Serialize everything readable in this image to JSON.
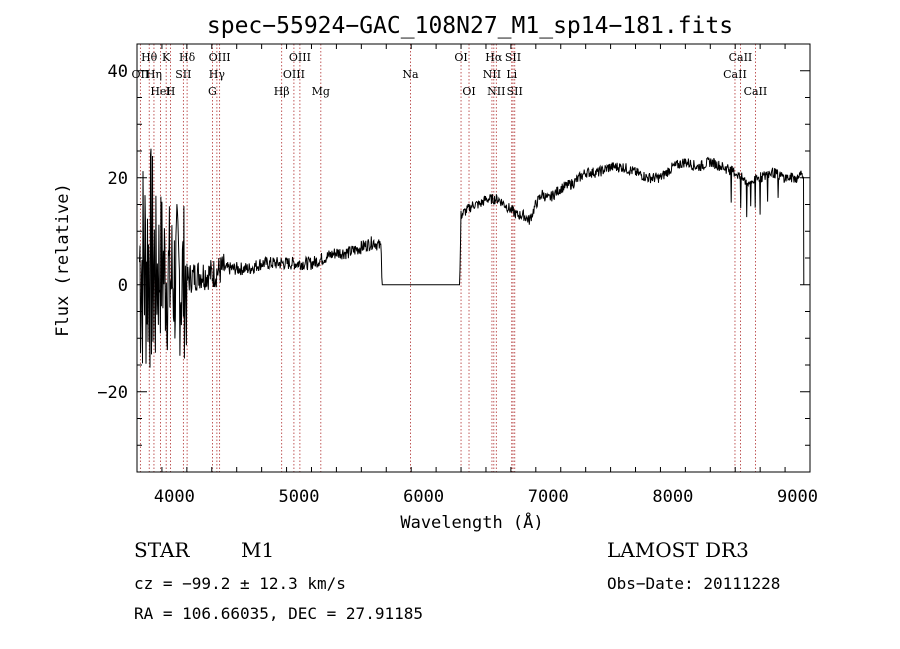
{
  "chart_data": {
    "type": "line",
    "title": "spec−55924−GAC_108N27_M1_sp14−181.fits",
    "xlabel": "Wavelength (Å)",
    "ylabel": "Flux (relative)",
    "xlim": [
      3700,
      9100
    ],
    "ylim": [
      -35,
      45
    ],
    "xticks": [
      4000,
      5000,
      6000,
      7000,
      8000,
      9000
    ],
    "yticks": [
      -20,
      0,
      20,
      40
    ],
    "ytick_labels": [
      "−20",
      "0",
      "20",
      "40"
    ],
    "series": [
      {
        "name": "spectrum",
        "x": [
          3700,
          3760,
          3800,
          3850,
          3900,
          3950,
          4000,
          4100,
          4200,
          4300,
          4400,
          4500,
          4600,
          4700,
          4800,
          4900,
          5000,
          5100,
          5200,
          5300,
          5400,
          5500,
          5600,
          5660,
          5665,
          6000,
          6290,
          6300,
          6350,
          6400,
          6450,
          6500,
          6550,
          6600,
          6650,
          6700,
          6750,
          6800,
          6850,
          6900,
          6950,
          7000,
          7100,
          7200,
          7300,
          7400,
          7500,
          7600,
          7700,
          7800,
          7900,
          8000,
          8100,
          8200,
          8300,
          8400,
          8500,
          8600,
          8700,
          8800,
          8900,
          9000,
          9050
        ],
        "y": [
          5,
          4,
          5,
          2,
          4,
          1,
          1,
          1,
          2,
          2,
          3,
          3,
          3,
          4,
          4,
          4,
          4,
          4,
          5,
          6,
          6,
          7,
          8,
          7,
          0,
          0,
          0,
          13,
          14,
          15,
          15,
          16,
          16,
          16,
          15,
          14,
          13,
          13,
          12,
          15,
          17,
          16,
          18,
          19,
          21,
          21,
          22,
          22,
          21,
          20,
          20,
          22,
          23,
          22,
          23,
          22,
          21,
          19,
          20,
          21,
          20,
          20,
          21
        ]
      }
    ],
    "line_markers": [
      {
        "name": "OII",
        "w": 3727,
        "row": 2
      },
      {
        "name": "Hθ",
        "w": 3798,
        "row": 1
      },
      {
        "name": "Hη",
        "w": 3836,
        "row": 2
      },
      {
        "name": "HeI",
        "w": 3889,
        "row": 3
      },
      {
        "name": "K",
        "w": 3934,
        "row": 1
      },
      {
        "name": "H",
        "w": 3969,
        "row": 3
      },
      {
        "name": "SII",
        "w": 4072,
        "row": 2
      },
      {
        "name": "Hδ",
        "w": 4102,
        "row": 1
      },
      {
        "name": "G",
        "w": 4305,
        "row": 3
      },
      {
        "name": "Hγ",
        "w": 4341,
        "row": 2
      },
      {
        "name": "OIII",
        "w": 4363,
        "row": 1
      },
      {
        "name": "Hβ",
        "w": 4861,
        "row": 3
      },
      {
        "name": "OIII",
        "w": 4959,
        "row": 2
      },
      {
        "name": "OIII",
        "w": 5007,
        "row": 1
      },
      {
        "name": "Mg",
        "w": 5175,
        "row": 3
      },
      {
        "name": "Na",
        "w": 5894,
        "row": 2
      },
      {
        "name": "OI",
        "w": 6300,
        "row": 1
      },
      {
        "name": "OI",
        "w": 6364,
        "row": 3
      },
      {
        "name": "NII",
        "w": 6548,
        "row": 2
      },
      {
        "name": "Hα",
        "w": 6563,
        "row": 1
      },
      {
        "name": "NII",
        "w": 6583,
        "row": 3
      },
      {
        "name": "Li",
        "w": 6707,
        "row": 2
      },
      {
        "name": "SII",
        "w": 6717,
        "row": 1
      },
      {
        "name": "SII",
        "w": 6731,
        "row": 3
      },
      {
        "name": "CaII",
        "w": 8498,
        "row": 2
      },
      {
        "name": "CaII",
        "w": 8542,
        "row": 1
      },
      {
        "name": "CaII",
        "w": 8662,
        "row": 3
      }
    ]
  },
  "info": {
    "class": "STAR",
    "subclass": "M1",
    "survey": "LAMOST DR3",
    "cz": "cz = −99.2 ± 12.3 km/s",
    "obs_date": "Obs−Date: 20111228",
    "radec": "RA = 106.66035, DEC =  27.91185"
  }
}
